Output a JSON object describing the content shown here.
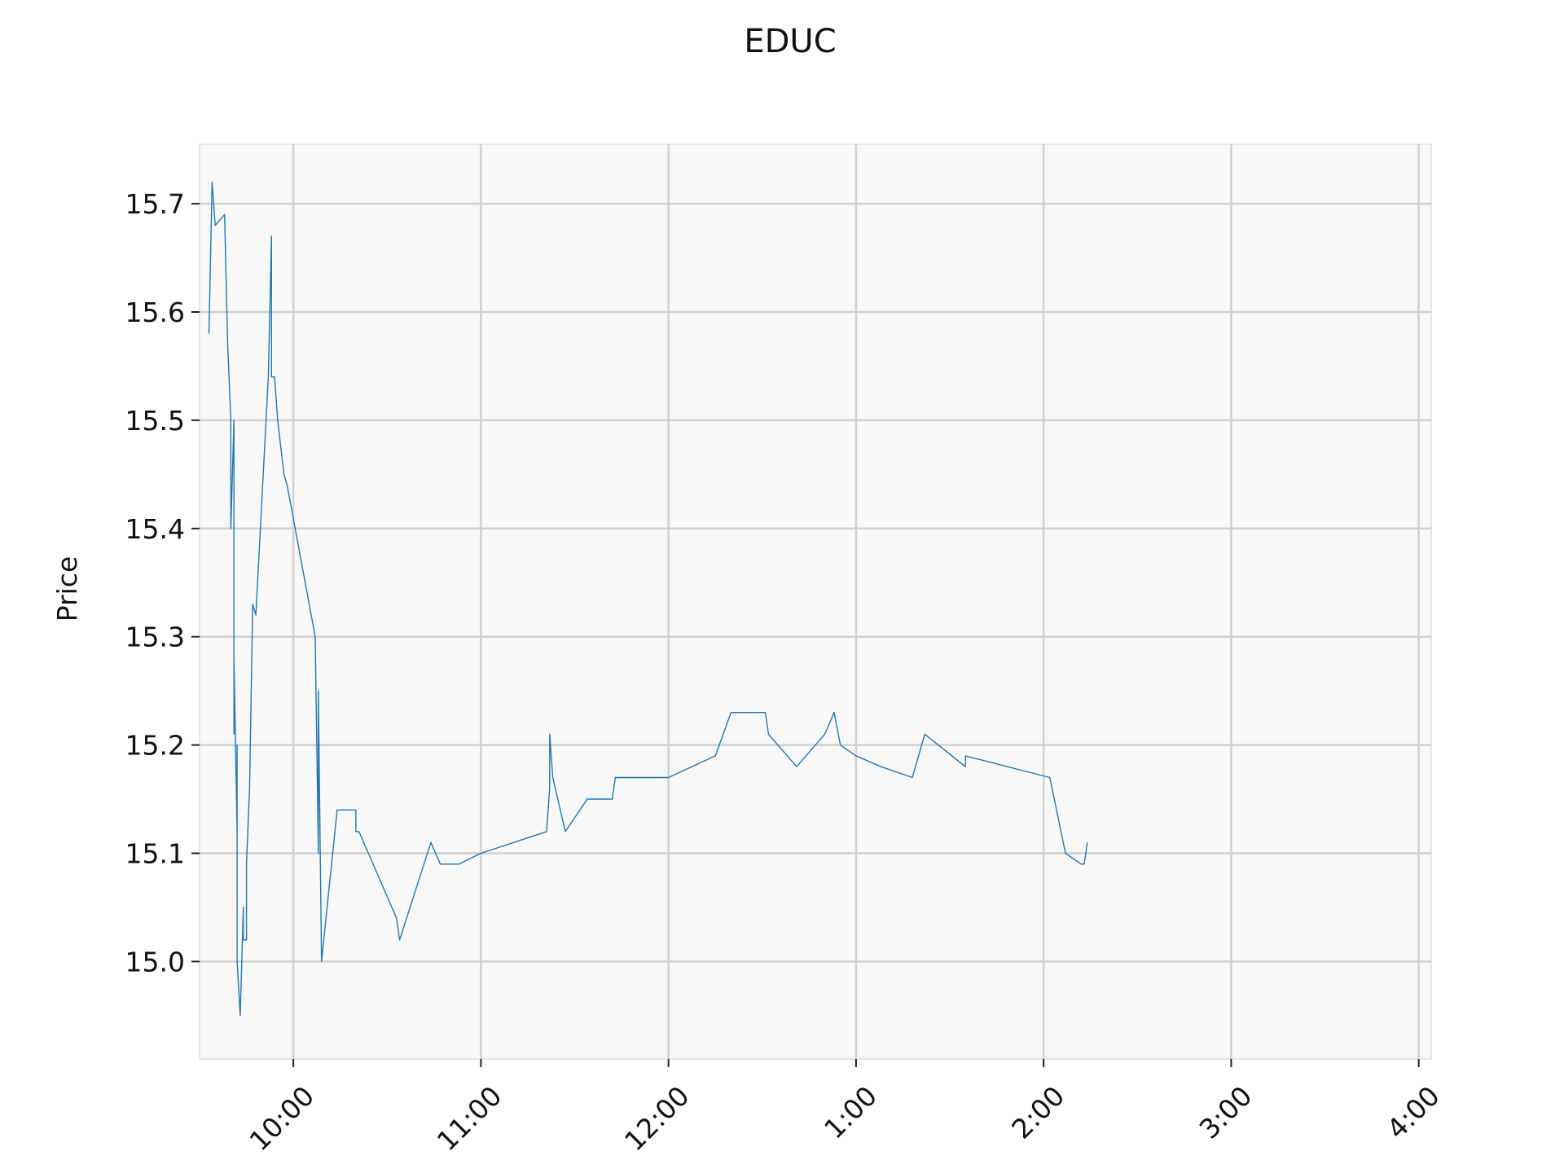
{
  "chart_data": {
    "type": "line",
    "title": "EDUC",
    "xlabel": "",
    "ylabel": "Price",
    "ylim": [
      14.91,
      15.755
    ],
    "xlim": [
      "09:30",
      "16:04"
    ],
    "grid": true,
    "legend": "none",
    "colors": {
      "line": "#1f77b4",
      "plot_background": "#f8f8f8",
      "grid": "#d0d0d0",
      "spine": "#e6e6e6"
    },
    "y_ticks": [
      {
        "value": 15.0,
        "label": "15.0"
      },
      {
        "value": 15.1,
        "label": "15.1"
      },
      {
        "value": 15.2,
        "label": "15.2"
      },
      {
        "value": 15.3,
        "label": "15.3"
      },
      {
        "value": 15.4,
        "label": "15.4"
      },
      {
        "value": 15.5,
        "label": "15.5"
      },
      {
        "value": 15.6,
        "label": "15.6"
      },
      {
        "value": 15.7,
        "label": "15.7"
      }
    ],
    "x_ticks": [
      {
        "value": "10:00",
        "label": "10:00"
      },
      {
        "value": "11:00",
        "label": "11:00"
      },
      {
        "value": "12:00",
        "label": "12:00"
      },
      {
        "value": "13:00",
        "label": "1:00"
      },
      {
        "value": "14:00",
        "label": "2:00"
      },
      {
        "value": "15:00",
        "label": "3:00"
      },
      {
        "value": "16:00",
        "label": "4:00"
      }
    ],
    "series": [
      {
        "x": [
          "09:33",
          "09:34",
          "09:35",
          "09:38",
          "09:39",
          "09:40",
          "09:40",
          "09:41",
          "09:41",
          "09:41",
          "09:42",
          "09:42",
          "09:42",
          "09:43",
          "09:44",
          "09:44",
          "09:45",
          "09:45",
          "09:46",
          "09:47",
          "09:48",
          "09:52",
          "09:53",
          "09:53",
          "09:54",
          "09:55",
          "09:57",
          "09:58",
          "10:07",
          "10:08",
          "10:08",
          "10:09",
          "10:14",
          "10:19",
          "10:20",
          "10:20",
          "10:21",
          "10:33",
          "10:34",
          "10:44",
          "10:47",
          "10:52",
          "10:53",
          "10:53",
          "11:00",
          "11:21",
          "11:22",
          "11:22",
          "11:23",
          "11:27",
          "11:34",
          "11:42",
          "11:43",
          "12:00",
          "12:15",
          "12:20",
          "12:21",
          "12:31",
          "12:32",
          "12:41",
          "12:50",
          "12:53",
          "12:55",
          "13:00",
          "13:08",
          "13:18",
          "13:22",
          "13:35",
          "13:35",
          "14:02",
          "14:07",
          "14:12",
          "14:13",
          "14:14"
        ],
        "y": [
          15.58,
          15.72,
          15.68,
          15.69,
          15.57,
          15.5,
          15.4,
          15.5,
          15.21,
          15.28,
          15.12,
          15.2,
          15.0,
          14.95,
          15.05,
          15.02,
          15.02,
          15.09,
          15.16,
          15.33,
          15.32,
          15.54,
          15.67,
          15.54,
          15.54,
          15.5,
          15.45,
          15.44,
          15.3,
          15.1,
          15.25,
          15.0,
          15.14,
          15.14,
          15.14,
          15.12,
          15.12,
          15.04,
          15.02,
          15.11,
          15.09,
          15.09,
          15.09,
          15.09,
          15.1,
          15.12,
          15.16,
          15.21,
          15.17,
          15.12,
          15.15,
          15.15,
          15.17,
          15.17,
          15.19,
          15.23,
          15.23,
          15.23,
          15.21,
          15.18,
          15.21,
          15.23,
          15.2,
          15.19,
          15.18,
          15.17,
          15.21,
          15.18,
          15.19,
          15.17,
          15.1,
          15.09,
          15.09,
          15.11
        ]
      }
    ]
  }
}
